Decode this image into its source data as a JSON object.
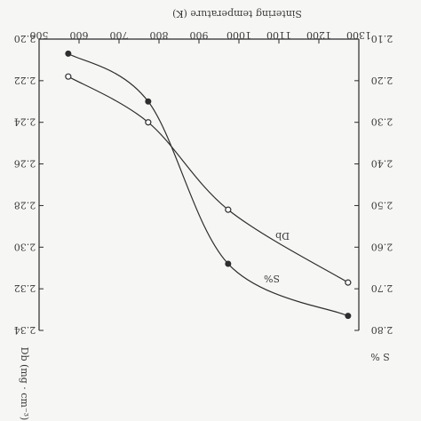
{
  "chart_data": {
    "type": "line",
    "x_axis": {
      "label": "Sintering temperature (K)",
      "ticks": [
        500,
        600,
        700,
        800,
        900,
        1000,
        1100,
        1200,
        1300
      ],
      "range": [
        500,
        1300
      ],
      "position": "top"
    },
    "y_left_axis": {
      "label": "Db (mg · cm⁻³)",
      "ticks": [
        2.2,
        2.22,
        2.24,
        2.26,
        2.28,
        2.3,
        2.32,
        2.34
      ],
      "tick_labels": [
        "2.20",
        "2.22",
        "2.24",
        "2.26",
        "2.28",
        "2.30",
        "2.32",
        "2.34"
      ],
      "range": [
        2.2,
        2.34
      ],
      "inverted": true
    },
    "y_right_axis": {
      "label": "S %",
      "ticks": [
        2.1,
        2.2,
        2.3,
        2.4,
        2.5,
        2.6,
        2.7,
        2.8
      ],
      "tick_labels": [
        "2.10",
        "2.20",
        "2.30",
        "2.40",
        "2.50",
        "2.60",
        "2.70",
        "2.80"
      ],
      "range": [
        2.1,
        2.8
      ],
      "inverted": true
    },
    "series": [
      {
        "name": "Db",
        "marker": "open-circle",
        "axis": "left",
        "x": [
          573,
          773,
          973,
          1273
        ],
        "y": [
          2.218,
          2.24,
          2.282,
          2.317
        ]
      },
      {
        "name": "S%",
        "marker": "filled-circle",
        "axis": "right",
        "x": [
          573,
          773,
          973,
          1273
        ],
        "y": [
          2.135,
          2.25,
          2.64,
          2.765
        ]
      }
    ],
    "grid": false,
    "legend": "inline labels on curves"
  }
}
